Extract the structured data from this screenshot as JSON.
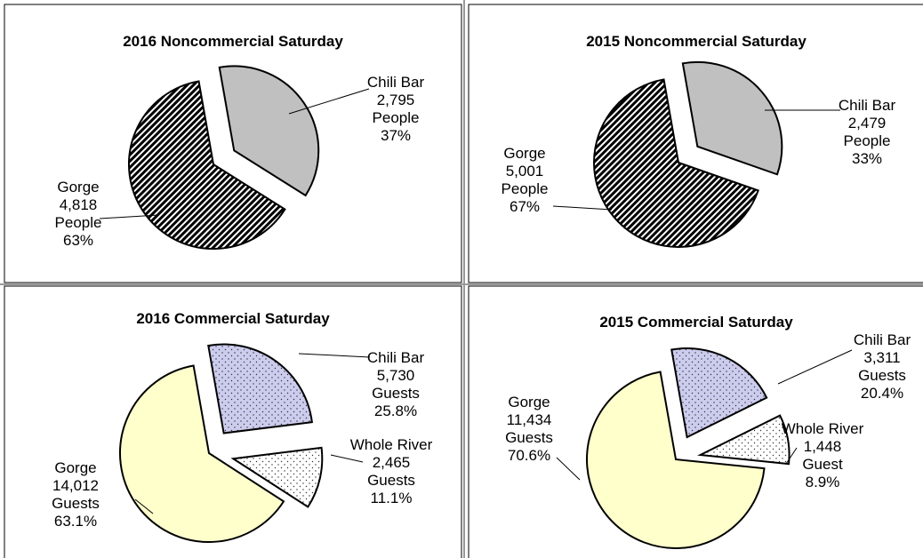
{
  "chart_data": [
    {
      "type": "pie",
      "title": "2016 Noncommercial Saturday",
      "categories": [
        "Chili Bar",
        "Gorge"
      ],
      "values": [
        2795,
        4818
      ],
      "value_labels": [
        "2,795",
        "4,818"
      ],
      "units": [
        "People",
        "People"
      ],
      "percents": [
        37,
        63
      ],
      "percent_labels": [
        "37%",
        "63%"
      ],
      "colors": [
        "#c0c0c0",
        "#333333"
      ],
      "patterns": [
        "solid",
        "diagonal"
      ]
    },
    {
      "type": "pie",
      "title": "2015 Noncommercial Saturday",
      "categories": [
        "Chili Bar",
        "Gorge"
      ],
      "values": [
        2479,
        5001
      ],
      "value_labels": [
        "2,479",
        "5,001"
      ],
      "units": [
        "People",
        "People"
      ],
      "percents": [
        33,
        67
      ],
      "percent_labels": [
        "33%",
        "67%"
      ],
      "colors": [
        "#c0c0c0",
        "#333333"
      ],
      "patterns": [
        "solid",
        "diagonal"
      ]
    },
    {
      "type": "pie",
      "title": "2016 Commercial Saturday",
      "categories": [
        "Chili Bar",
        "Whole River",
        "Gorge"
      ],
      "values": [
        5730,
        2465,
        14012
      ],
      "value_labels": [
        "5,730",
        "2,465",
        "14,012"
      ],
      "units": [
        "Guests",
        "Guests",
        "Guests"
      ],
      "percents": [
        25.8,
        11.1,
        63.1
      ],
      "percent_labels": [
        "25.8%",
        "11.1%",
        "63.1%"
      ],
      "colors": [
        "#ccccee",
        "#ffffff",
        "#ffffcc"
      ],
      "patterns": [
        "dots",
        "dots",
        "solid"
      ]
    },
    {
      "type": "pie",
      "title": "2015 Commercial Saturday",
      "categories": [
        "Chili Bar",
        "Whole River",
        "Gorge"
      ],
      "values": [
        3311,
        1448,
        11434
      ],
      "value_labels": [
        "3,311",
        "1,448",
        "11,434"
      ],
      "units": [
        "Guests",
        "Guest",
        "Guests"
      ],
      "percents": [
        20.4,
        8.9,
        70.6
      ],
      "percent_labels": [
        "20.4%",
        "8.9%",
        "70.6%"
      ],
      "colors": [
        "#ccccee",
        "#ffffff",
        "#ffffcc"
      ],
      "patterns": [
        "dots",
        "dots",
        "solid"
      ]
    }
  ]
}
